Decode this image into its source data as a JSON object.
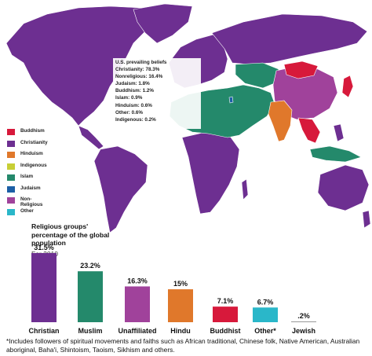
{
  "map": {
    "colors": {
      "Buddhism": "#d7193b",
      "Christianity": "#6d2f91",
      "Hinduism": "#e0782b",
      "Indigenous": "#c8cf35",
      "Islam": "#24896b",
      "Judaism": "#1c5fa6",
      "Non-Religious": "#a0429b",
      "Other": "#2ab7c9"
    },
    "callout": {
      "title": "U.S. prevailing beliefs",
      "lines": [
        "Christianity: 78.3%",
        "Nonreligious: 16.4%",
        "Judaism: 1.8%",
        "Buddhism: 1.2%",
        "Islam: 0.9%",
        "Hinduism: 0.6%",
        "Other: 0.6%",
        "Indigenous: 0.2%"
      ]
    },
    "legend": [
      {
        "label": "Buddhism",
        "color": "#d7193b"
      },
      {
        "label": "Christianity",
        "color": "#6d2f91"
      },
      {
        "label": "Hinduism",
        "color": "#e0782b"
      },
      {
        "label": "Indigenous",
        "color": "#c8cf35"
      },
      {
        "label": "Islam",
        "color": "#24896b"
      },
      {
        "label": "Judaism",
        "color": "#1c5fa6"
      },
      {
        "label": "Non-Religious",
        "color": "#a0429b"
      },
      {
        "label": "Other",
        "color": "#2ab7c9"
      }
    ]
  },
  "chart_data": {
    "type": "bar",
    "title": "Religious groups' percentage of the global population",
    "subtitle": "For 2010",
    "categories": [
      "Christian",
      "Muslim",
      "Unaffiliated",
      "Hindu",
      "Buddhist",
      "Other*",
      "Jewish"
    ],
    "value_labels": [
      "31.5%",
      "23.2%",
      "16.3%",
      "15%",
      "7.1%",
      "6.7%",
      ".2%"
    ],
    "values": [
      31.5,
      23.2,
      16.3,
      15,
      7.1,
      6.7,
      0.2
    ],
    "colors": [
      "#6d2f91",
      "#24896b",
      "#a0429b",
      "#e0782b",
      "#d7193b",
      "#2ab7c9",
      "#999999"
    ],
    "ylim": [
      0,
      31.5
    ],
    "grid": false,
    "legend": "none"
  },
  "footnote": "*Includes followers of spiritual movements and faiths such as African traditional, Chinese folk, Native American, Australian aboriginal, Baha'i, Shintoism, Taoism, Sikhism and others."
}
